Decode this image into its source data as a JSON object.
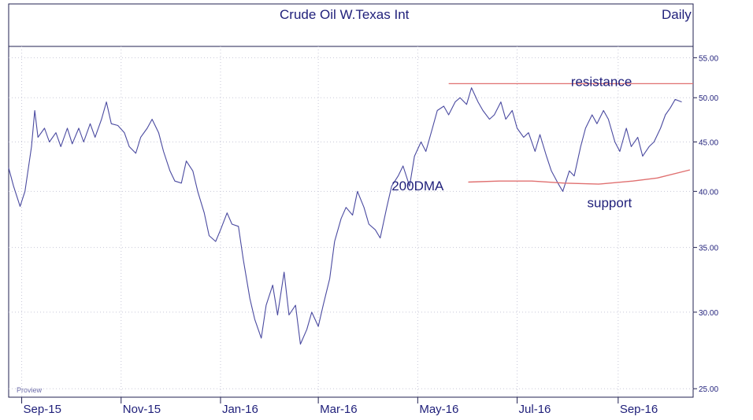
{
  "chart_data": {
    "type": "line",
    "title": "Crude Oil  W.Texas Int",
    "frequency_label": "Daily",
    "watermark": "Proview",
    "y_scale": "log",
    "ylim": [
      24.5,
      56.5
    ],
    "y_ticks": [
      55,
      50,
      45,
      40,
      35,
      30,
      25
    ],
    "y_tick_labels": [
      "55.00",
      "50.00",
      "45.00",
      "40.00",
      "35.00",
      "30.00",
      "25.00"
    ],
    "x_range": [
      "2015-08-24",
      "2016-10-17"
    ],
    "x_ticks": [
      {
        "date": "2015-09-01",
        "label": "Sep-15"
      },
      {
        "date": "2015-11-01",
        "label": "Nov-15"
      },
      {
        "date": "2016-01-01",
        "label": "Jan-16"
      },
      {
        "date": "2016-03-01",
        "label": "Mar-16"
      },
      {
        "date": "2016-05-01",
        "label": "May-16"
      },
      {
        "date": "2016-07-01",
        "label": "Jul-16"
      },
      {
        "date": "2016-09-01",
        "label": "Sep-16"
      }
    ],
    "series": [
      {
        "color": "#4a4aa0",
        "points": [
          [
            "2015-08-24",
            42.3
          ],
          [
            "2015-08-27",
            40.5
          ],
          [
            "2015-08-31",
            38.6
          ],
          [
            "2015-09-03",
            40.0
          ],
          [
            "2015-09-07",
            44.5
          ],
          [
            "2015-09-09",
            48.5
          ],
          [
            "2015-09-11",
            45.5
          ],
          [
            "2015-09-15",
            46.5
          ],
          [
            "2015-09-18",
            45.0
          ],
          [
            "2015-09-22",
            46.0
          ],
          [
            "2015-09-25",
            44.5
          ],
          [
            "2015-09-29",
            46.5
          ],
          [
            "2015-10-02",
            44.8
          ],
          [
            "2015-10-06",
            46.5
          ],
          [
            "2015-10-09",
            45.0
          ],
          [
            "2015-10-13",
            47.0
          ],
          [
            "2015-10-16",
            45.5
          ],
          [
            "2015-10-20",
            47.5
          ],
          [
            "2015-10-23",
            49.5
          ],
          [
            "2015-10-26",
            47.0
          ],
          [
            "2015-10-30",
            46.8
          ],
          [
            "2015-11-03",
            46.0
          ],
          [
            "2015-11-06",
            44.5
          ],
          [
            "2015-11-10",
            43.8
          ],
          [
            "2015-11-13",
            45.5
          ],
          [
            "2015-11-17",
            46.5
          ],
          [
            "2015-11-20",
            47.5
          ],
          [
            "2015-11-24",
            46.0
          ],
          [
            "2015-11-27",
            44.0
          ],
          [
            "2015-12-01",
            42.0
          ],
          [
            "2015-12-04",
            41.0
          ],
          [
            "2015-12-08",
            40.8
          ],
          [
            "2015-12-11",
            43.0
          ],
          [
            "2015-12-15",
            42.0
          ],
          [
            "2015-12-18",
            40.0
          ],
          [
            "2015-12-22",
            38.0
          ],
          [
            "2015-12-25",
            36.0
          ],
          [
            "2015-12-29",
            35.5
          ],
          [
            "2016-01-01",
            36.5
          ],
          [
            "2016-01-05",
            38.0
          ],
          [
            "2016-01-08",
            37.0
          ],
          [
            "2016-01-12",
            36.8
          ],
          [
            "2016-01-15",
            34.0
          ],
          [
            "2016-01-19",
            31.0
          ],
          [
            "2016-01-22",
            29.5
          ],
          [
            "2016-01-26",
            28.2
          ],
          [
            "2016-01-29",
            30.5
          ],
          [
            "2016-02-02",
            32.0
          ],
          [
            "2016-02-05",
            29.8
          ],
          [
            "2016-02-09",
            33.0
          ],
          [
            "2016-02-12",
            29.8
          ],
          [
            "2016-02-16",
            30.5
          ],
          [
            "2016-02-19",
            27.8
          ],
          [
            "2016-02-23",
            28.8
          ],
          [
            "2016-02-26",
            30.0
          ],
          [
            "2016-03-01",
            29.0
          ],
          [
            "2016-03-04",
            30.5
          ],
          [
            "2016-03-08",
            32.5
          ],
          [
            "2016-03-11",
            35.5
          ],
          [
            "2016-03-15",
            37.5
          ],
          [
            "2016-03-18",
            38.5
          ],
          [
            "2016-03-22",
            37.8
          ],
          [
            "2016-03-25",
            40.0
          ],
          [
            "2016-03-29",
            38.5
          ],
          [
            "2016-04-01",
            37.0
          ],
          [
            "2016-04-05",
            36.5
          ],
          [
            "2016-04-08",
            35.8
          ],
          [
            "2016-04-12",
            38.5
          ],
          [
            "2016-04-15",
            40.5
          ],
          [
            "2016-04-19",
            41.5
          ],
          [
            "2016-04-22",
            42.5
          ],
          [
            "2016-04-26",
            40.5
          ],
          [
            "2016-04-29",
            43.5
          ],
          [
            "2016-05-03",
            45.0
          ],
          [
            "2016-05-06",
            44.0
          ],
          [
            "2016-05-10",
            46.5
          ],
          [
            "2016-05-13",
            48.5
          ],
          [
            "2016-05-17",
            49.0
          ],
          [
            "2016-05-20",
            48.0
          ],
          [
            "2016-05-24",
            49.5
          ],
          [
            "2016-05-27",
            50.0
          ],
          [
            "2016-05-31",
            49.2
          ],
          [
            "2016-06-03",
            51.2
          ],
          [
            "2016-06-07",
            49.5
          ],
          [
            "2016-06-10",
            48.5
          ],
          [
            "2016-06-14",
            47.5
          ],
          [
            "2016-06-17",
            48.0
          ],
          [
            "2016-06-21",
            49.5
          ],
          [
            "2016-06-24",
            47.5
          ],
          [
            "2016-06-28",
            48.5
          ],
          [
            "2016-07-01",
            46.5
          ],
          [
            "2016-07-05",
            45.5
          ],
          [
            "2016-07-08",
            46.0
          ],
          [
            "2016-07-12",
            44.0
          ],
          [
            "2016-07-15",
            45.8
          ],
          [
            "2016-07-19",
            43.5
          ],
          [
            "2016-07-22",
            42.0
          ],
          [
            "2016-07-26",
            40.8
          ],
          [
            "2016-07-29",
            40.0
          ],
          [
            "2016-08-02",
            42.0
          ],
          [
            "2016-08-05",
            41.5
          ],
          [
            "2016-08-09",
            44.5
          ],
          [
            "2016-08-12",
            46.5
          ],
          [
            "2016-08-16",
            48.0
          ],
          [
            "2016-08-19",
            47.0
          ],
          [
            "2016-08-23",
            48.5
          ],
          [
            "2016-08-26",
            47.5
          ],
          [
            "2016-08-30",
            45.0
          ],
          [
            "2016-09-02",
            44.0
          ],
          [
            "2016-09-06",
            46.5
          ],
          [
            "2016-09-09",
            44.5
          ],
          [
            "2016-09-13",
            45.5
          ],
          [
            "2016-09-16",
            43.5
          ],
          [
            "2016-09-20",
            44.5
          ],
          [
            "2016-09-23",
            45.0
          ],
          [
            "2016-09-27",
            46.5
          ],
          [
            "2016-09-30",
            48.0
          ],
          [
            "2016-10-03",
            48.8
          ],
          [
            "2016-10-06",
            49.8
          ],
          [
            "2016-10-10",
            49.5
          ]
        ]
      },
      {
        "color": "#e07070",
        "points": [
          [
            "2016-06-01",
            40.9
          ],
          [
            "2016-06-20",
            41.0
          ],
          [
            "2016-07-10",
            41.0
          ],
          [
            "2016-07-30",
            40.8
          ],
          [
            "2016-08-20",
            40.7
          ],
          [
            "2016-09-10",
            41.0
          ],
          [
            "2016-09-25",
            41.3
          ],
          [
            "2016-10-15",
            42.1
          ]
        ]
      }
    ],
    "resistance_line": {
      "value": 51.7,
      "from": "2016-05-20",
      "to": "2016-10-17",
      "color": "#e07070"
    },
    "annotations": [
      {
        "text": "resistance",
        "date": "2016-08-03",
        "value": 51.4
      },
      {
        "text": "200DMA",
        "date": "2016-04-15",
        "value": 40.1
      },
      {
        "text": "support",
        "date": "2016-08-13",
        "value": 38.5
      }
    ]
  }
}
